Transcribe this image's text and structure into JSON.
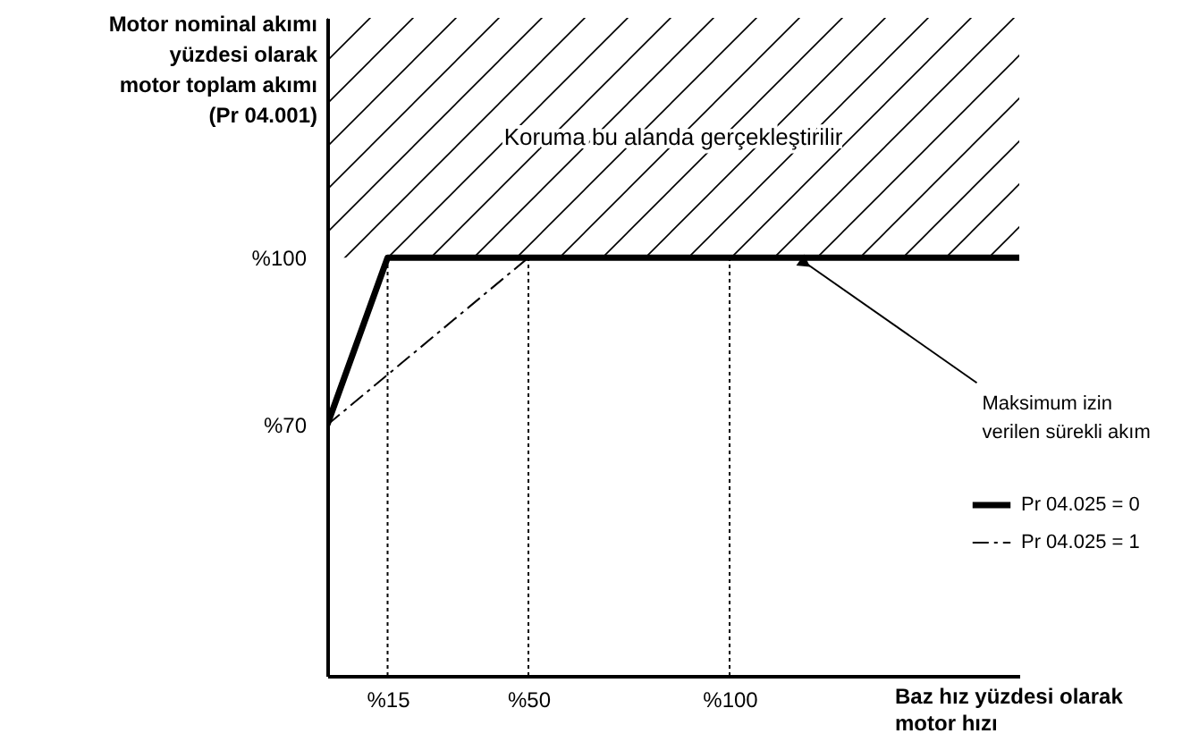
{
  "chart_data": {
    "type": "line",
    "ylabel": "Motor nominal akımı\nyüzdesi olarak\nmotor toplam akımı\n(Pr 04.001)",
    "xlabel": "Baz hız yüzdesi olarak\nmotor hızı",
    "xlim": [
      0,
      172
    ],
    "ylim": [
      25,
      143
    ],
    "xticks": [
      {
        "value": 15,
        "label": "%15"
      },
      {
        "value": 50,
        "label": "%50"
      },
      {
        "value": 100,
        "label": "%100"
      }
    ],
    "yticks": [
      {
        "value": 70,
        "label": "%70"
      },
      {
        "value": 100,
        "label": "%100"
      }
    ],
    "series": [
      {
        "name": "Pr 04.025 = 0",
        "color": "#000000",
        "line_style": "solid",
        "x": [
          0,
          15,
          172
        ],
        "values": [
          70,
          100,
          100
        ]
      },
      {
        "name": "Pr 04.025 = 1",
        "color": "#000000",
        "line_style": "dashed",
        "x": [
          0,
          50,
          172
        ],
        "values": [
          70,
          100,
          100
        ]
      }
    ],
    "ref_lines": [
      {
        "axis": "x",
        "value": 15,
        "line_style": "dotted",
        "color": "#000000"
      },
      {
        "axis": "x",
        "value": 50,
        "line_style": "dotted",
        "color": "#000000"
      },
      {
        "axis": "x",
        "value": 100,
        "line_style": "dotted",
        "color": "#000000"
      }
    ],
    "bands": [
      {
        "axis": "y",
        "from": 100,
        "to": 143,
        "label": "Koruma bu alanda gerçekleştirilir",
        "color": "#000000"
      }
    ],
    "annotations": [
      {
        "text": "Maksimum izin\nverilen sürekli akım",
        "x": 117,
        "y": 100
      }
    ],
    "legend": "bottom right",
    "grid": false
  }
}
